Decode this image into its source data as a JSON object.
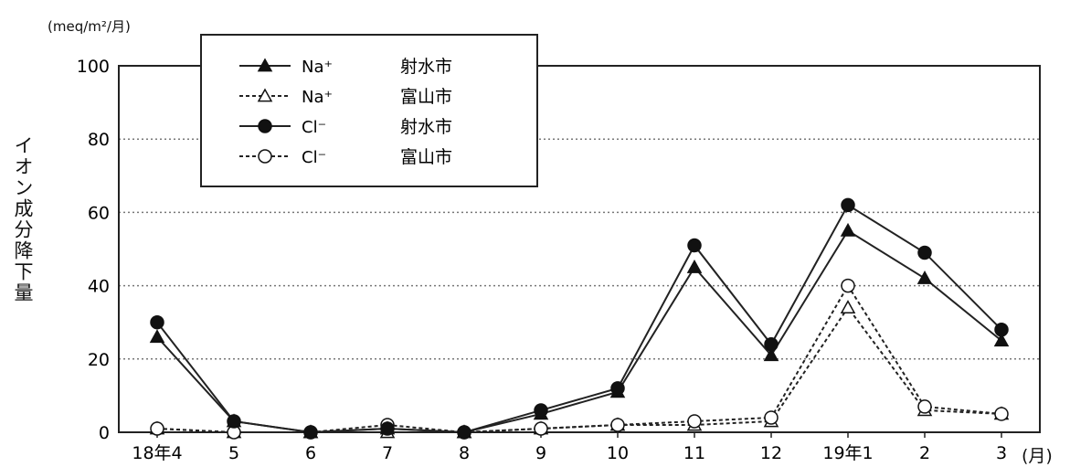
{
  "chart_data": {
    "type": "line",
    "unit_label": "(meq/m²/月)",
    "ylabel": "イオン成分降下量",
    "x_unit": "(月)",
    "categories": [
      "18年4",
      "5",
      "6",
      "7",
      "8",
      "9",
      "10",
      "11",
      "12",
      "19年1",
      "2",
      "3"
    ],
    "ylim": [
      0,
      100
    ],
    "yticks": [
      0,
      20,
      40,
      60,
      80,
      100
    ],
    "grid": "horizontal dotted",
    "legend_position": "top-left",
    "series": [
      {
        "name": "Na⁺",
        "place": "射水市",
        "marker": "filled-triangle",
        "line": "solid",
        "values": [
          26,
          3,
          0,
          1,
          0,
          5,
          11,
          45,
          21,
          55,
          42,
          25
        ]
      },
      {
        "name": "Na⁺",
        "place": "富山市",
        "marker": "open-triangle",
        "line": "dashed",
        "values": [
          1,
          0,
          0,
          0,
          0,
          1,
          2,
          2,
          3,
          34,
          6,
          5
        ]
      },
      {
        "name": "Cl⁻",
        "place": "射水市",
        "marker": "filled-circle",
        "line": "solid",
        "values": [
          30,
          3,
          0,
          1,
          0,
          6,
          12,
          51,
          24,
          62,
          49,
          28
        ]
      },
      {
        "name": "Cl⁻",
        "place": "富山市",
        "marker": "open-circle",
        "line": "dashed",
        "values": [
          1,
          0,
          0,
          2,
          0,
          1,
          2,
          3,
          4,
          40,
          7,
          5
        ]
      }
    ]
  }
}
